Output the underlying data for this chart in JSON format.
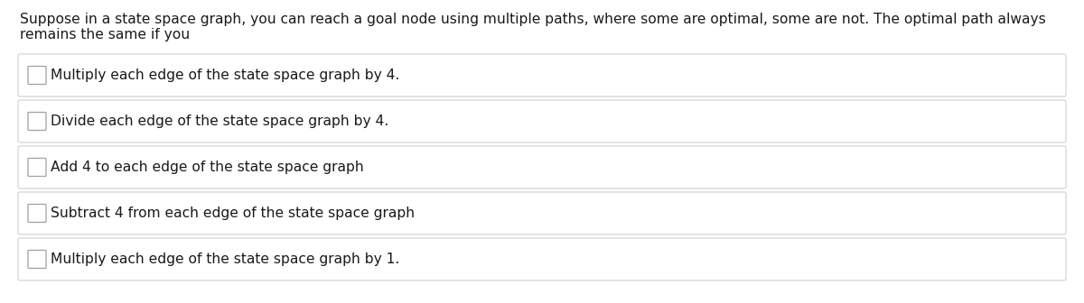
{
  "question_line1": "Suppose in a state space graph, you can reach a goal node using multiple paths, where some are optimal, some are not. The optimal path always",
  "question_line2": "remains the same if you",
  "options": [
    "Multiply each edge of the state space graph by 4.",
    "Divide each edge of the state space graph by 4.",
    "Add 4 to each edge of the state space graph",
    "Subtract 4 from each edge of the state space graph",
    "Multiply each edge of the state space graph by 1."
  ],
  "bg_color": "#ffffff",
  "text_color": "#1a1a1a",
  "question_fontsize": 11.2,
  "option_fontsize": 11.2,
  "box_border_color": "#d0d0d0",
  "box_bg_color": "#ffffff",
  "checkbox_border_color": "#a0a0a0",
  "checkbox_bg_color": "#ffffff",
  "fig_width": 12.0,
  "fig_height": 3.36,
  "dpi": 100
}
